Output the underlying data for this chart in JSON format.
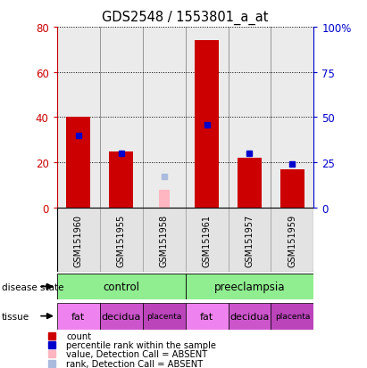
{
  "title": "GDS2548 / 1553801_a_at",
  "samples": [
    "GSM151960",
    "GSM151955",
    "GSM151958",
    "GSM151961",
    "GSM151957",
    "GSM151959"
  ],
  "count_values": [
    40,
    25,
    null,
    74,
    22,
    17
  ],
  "count_absent_values": [
    null,
    null,
    8,
    null,
    null,
    null
  ],
  "percentile_values": [
    40,
    30,
    null,
    46,
    30,
    24
  ],
  "percentile_absent_values": [
    null,
    null,
    17,
    null,
    null,
    null
  ],
  "ylim_left": [
    0,
    80
  ],
  "ylim_right": [
    0,
    100
  ],
  "yticks_left": [
    0,
    20,
    40,
    60,
    80
  ],
  "yticks_right": [
    0,
    25,
    50,
    75,
    100
  ],
  "ytick_labels_left": [
    "0",
    "20",
    "40",
    "60",
    "80"
  ],
  "ytick_labels_right": [
    "0",
    "25",
    "50",
    "75",
    "100%"
  ],
  "bar_width": 0.55,
  "count_color": "#CC0000",
  "count_absent_color": "#FFB6C1",
  "percentile_color": "#0000CC",
  "percentile_absent_color": "#AABBDD",
  "left_axis_color": "#CC0000",
  "right_axis_color": "#0000CC",
  "col_bg_color": "#C8C8C8",
  "disease_state_color": "#90EE90",
  "tissue_colors": [
    "#EE82EE",
    "#CC55CC",
    "#BB44BB",
    "#EE82EE",
    "#CC55CC",
    "#BB44BB"
  ],
  "tissue_labels": [
    "fat",
    "decidua",
    "placenta",
    "fat",
    "decidua",
    "placenta"
  ],
  "legend_items": [
    {
      "color": "#CC0000",
      "label": "count"
    },
    {
      "color": "#0000CC",
      "label": "percentile rank within the sample"
    },
    {
      "color": "#FFB6C1",
      "label": "value, Detection Call = ABSENT"
    },
    {
      "color": "#AABBDD",
      "label": "rank, Detection Call = ABSENT"
    }
  ]
}
